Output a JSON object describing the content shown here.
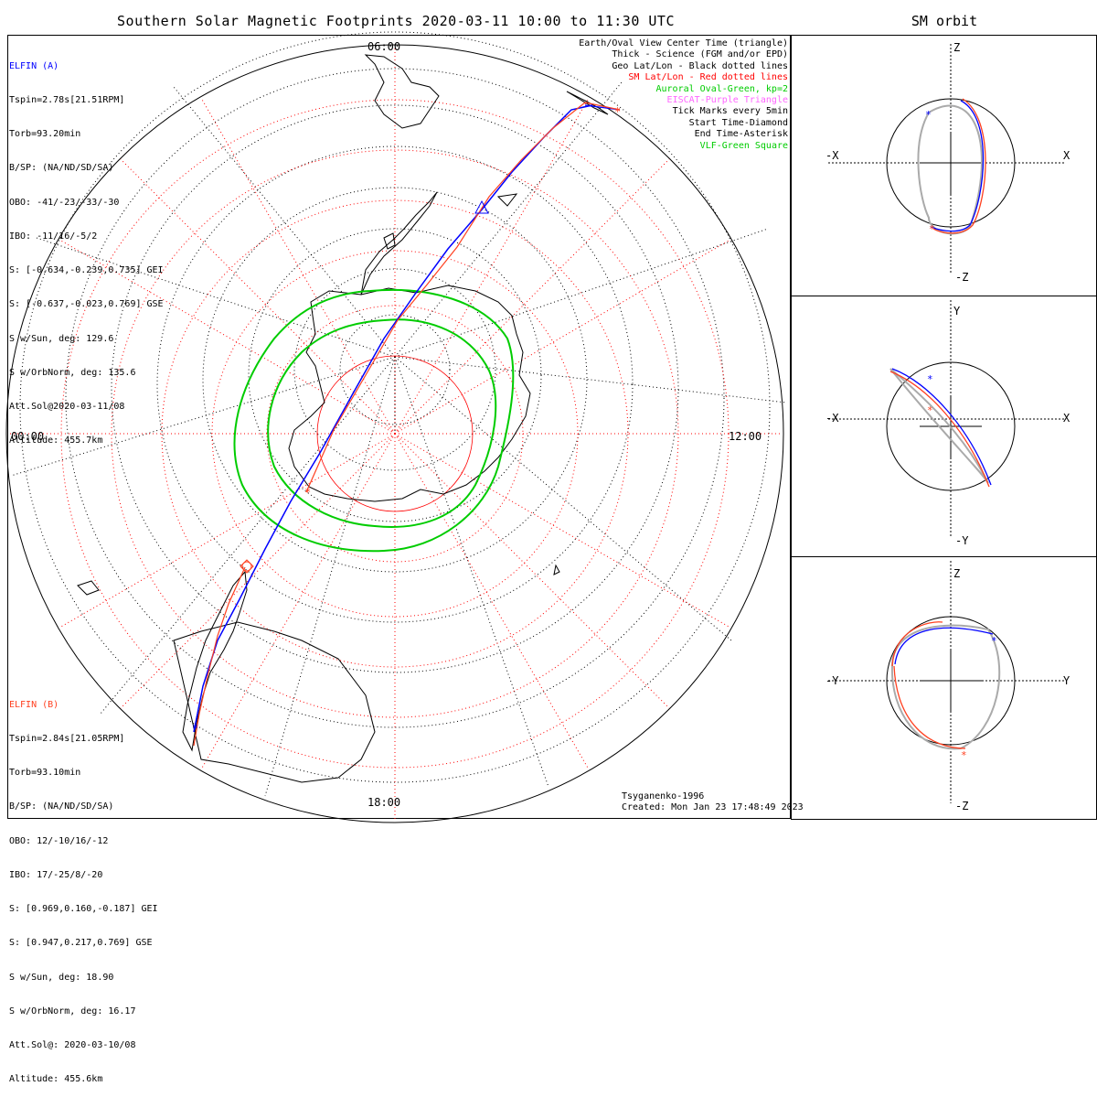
{
  "title": "Southern Solar Magnetic Footprints 2020-03-11 10:00 to 11:30 UTC",
  "side_title": "SM orbit",
  "map_labels": {
    "top": "06:00",
    "left": "00:00",
    "right": "12:00",
    "bottom": "18:00"
  },
  "elfin_a": {
    "name": "ELFIN (A)",
    "color": "#0000ff",
    "lines": [
      "Tspin=2.78s[21.51RPM]",
      "Torb=93.20min",
      "B/SP: (NA/ND/SD/SA)",
      "OBO: -41/-23/-33/-30",
      "IBO: -11/16/-5/2",
      "S: [-0.634,-0.239,0.735] GEI",
      "S: [-0.637,-0.023,0.769] GSE",
      "S w/Sun, deg: 129.6",
      "S w/OrbNorm, deg: 135.6",
      "Att.Sol@2020-03-11/08",
      "Altitude: 455.7km"
    ]
  },
  "elfin_b": {
    "name": "ELFIN (B)",
    "color": "#ff4020",
    "lines": [
      "Tspin=2.84s[21.05RPM]",
      "Torb=93.10min",
      "B/SP: (NA/ND/SD/SA)",
      "OBO: 12/-10/16/-12",
      "IBO: 17/-25/8/-20",
      "S: [0.969,0.160,-0.187] GEI",
      "S: [0.947,0.217,0.769] GSE",
      "S w/Sun, deg: 18.90",
      "S w/OrbNorm, deg: 16.17",
      "Att.Sol@: 2020-03-10/08",
      "Altitude: 455.6km"
    ]
  },
  "legend": [
    {
      "text": "Earth/Oval View Center Time (triangle)",
      "color": "#000000"
    },
    {
      "text": "Thick - Science (FGM and/or EPD)",
      "color": "#000000"
    },
    {
      "text": "Geo Lat/Lon - Black dotted lines",
      "color": "#000000"
    },
    {
      "text": "SM Lat/Lon - Red dotted lines",
      "color": "#ff0000"
    },
    {
      "text": "Auroral Oval-Green, kp=2",
      "color": "#00cc00"
    },
    {
      "text": "EISCAT-Purple Triangle",
      "color": "#ff66ff"
    },
    {
      "text": "Tick Marks every 5min",
      "color": "#000000"
    },
    {
      "text": "Start Time-Diamond",
      "color": "#000000"
    },
    {
      "text": "End Time-Asterisk",
      "color": "#000000"
    },
    {
      "text": "VLF-Green Square",
      "color": "#00cc00"
    }
  ],
  "credit": [
    "Tsyganenko-1996",
    "Created: Mon Jan 23 17:48:49 2023"
  ],
  "panels": [
    {
      "left": "-X",
      "right": "X",
      "top": "Z",
      "bottom": "-Z"
    },
    {
      "left": "-X",
      "right": "X",
      "top": "Y",
      "bottom": "-Y"
    },
    {
      "left": "-Y",
      "right": "Y",
      "top": "Z",
      "bottom": "-Z"
    }
  ]
}
